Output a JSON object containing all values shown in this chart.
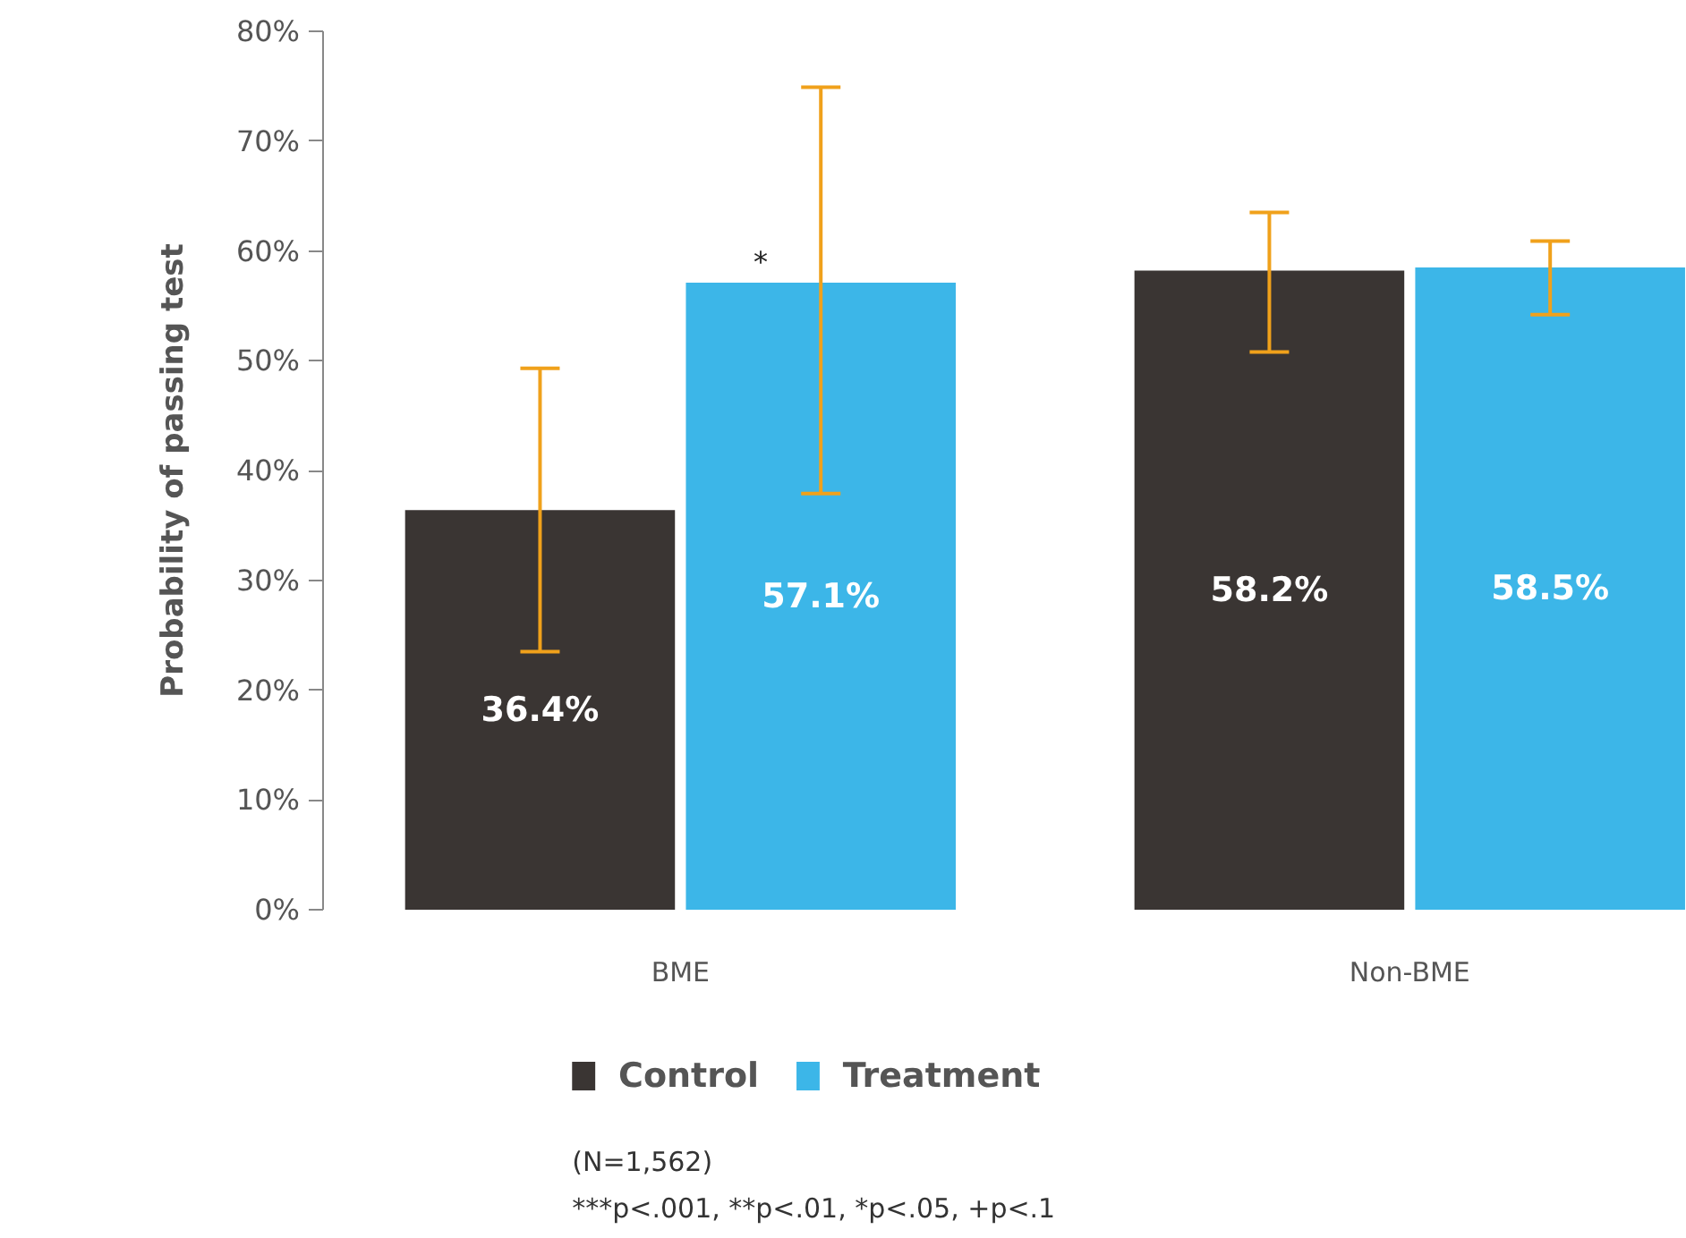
{
  "chart_data": {
    "type": "bar",
    "ylabel": "Probability of passing test",
    "categories": [
      "BME",
      "Non-BME"
    ],
    "series": [
      {
        "name": "Control",
        "color": "#3a3533",
        "values": [
          36.4,
          58.2
        ],
        "errors": [
          [
            23.5,
            49.3
          ],
          [
            50.8,
            63.5
          ]
        ]
      },
      {
        "name": "Treatment",
        "color": "#3cb6e8",
        "values": [
          57.1,
          58.5
        ],
        "errors": [
          [
            37.9,
            74.9
          ],
          [
            54.2,
            60.9
          ]
        ]
      }
    ],
    "ylim": [
      0,
      80
    ],
    "yticks": [
      {
        "value": 0,
        "label": "0%"
      },
      {
        "value": 10,
        "label": "10%"
      },
      {
        "value": 20,
        "label": "20%"
      },
      {
        "value": 30,
        "label": "30%"
      },
      {
        "value": 40,
        "label": "40%"
      },
      {
        "value": 50,
        "label": "50%"
      },
      {
        "value": 60,
        "label": "60%"
      },
      {
        "value": 70,
        "label": "70%"
      },
      {
        "value": 80,
        "label": "80%"
      }
    ],
    "value_labels": [
      "36.4%",
      "58.2%",
      "57.1%",
      "58.5%"
    ],
    "data_labels": false,
    "grid": false,
    "legend": "bottom left",
    "annotations": [
      {
        "text": "*",
        "x": "BME",
        "y": 57.1
      },
      "(N=1,562)",
      "***p<.001, **p<.01, *p<.05, +p<.1"
    ]
  }
}
